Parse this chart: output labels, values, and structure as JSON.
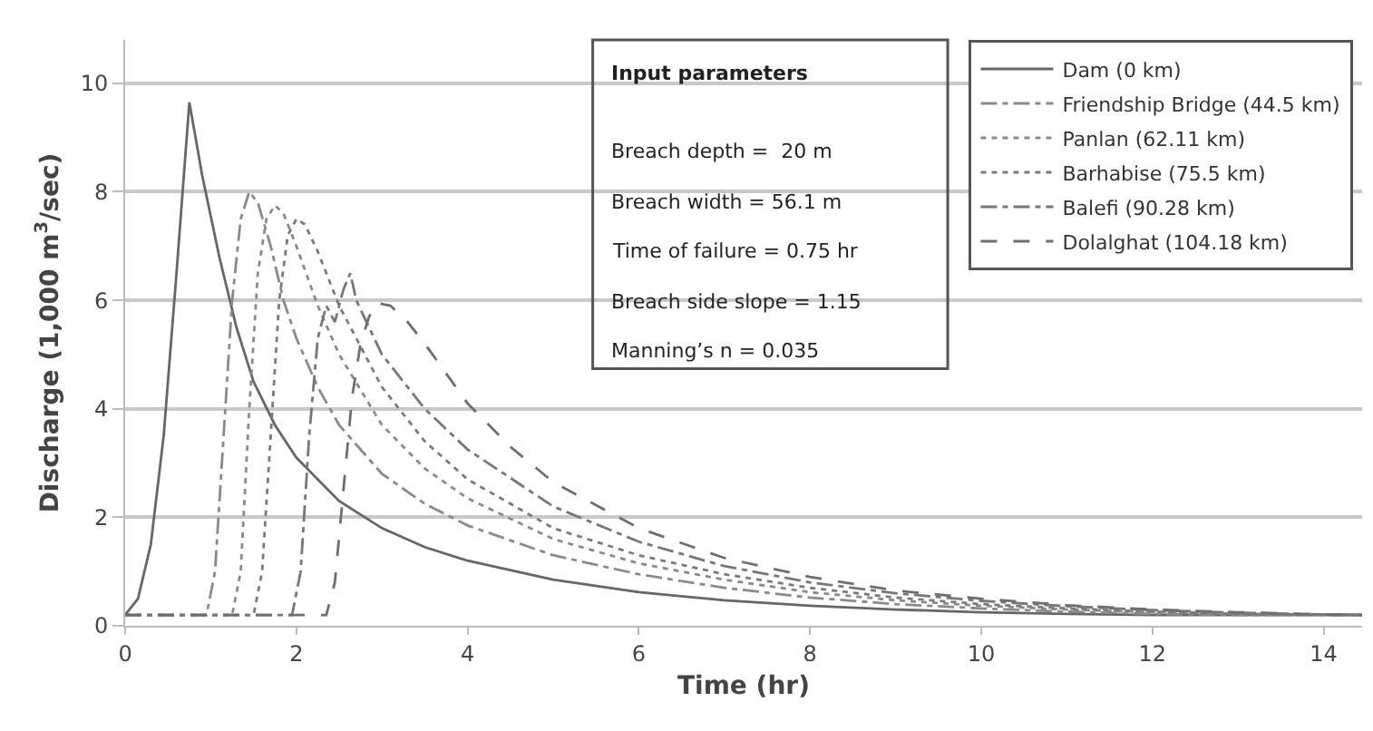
{
  "chart_data": {
    "type": "line",
    "xlabel": "Time (hr)",
    "ylabel": "Discharge (1,000 m$^{3}$/sec)",
    "xlim": [
      0,
      14.45
    ],
    "xticks": [
      0,
      2,
      4,
      6,
      8,
      10,
      12,
      14
    ],
    "ylim": [
      0,
      10.8
    ],
    "yticks": [
      0,
      2,
      4,
      6,
      8,
      10
    ],
    "grid": "y",
    "legend": "top right",
    "marker": "none",
    "annotations": [
      "Input parameters",
      "Breach depth =  20 m",
      "Breach width = 56.1 m",
      "Time of failure = 0.75 hr",
      "Breach side slope = 1.15",
      "Manning’s n = 0.035"
    ],
    "series": [
      {
        "name": "Dam (0 km)",
        "color": "#666666",
        "line_style": "solid",
        "x": [
          0,
          0.15,
          0.3,
          0.45,
          0.6,
          0.75,
          0.9,
          1.1,
          1.3,
          1.5,
          1.75,
          2,
          2.5,
          3,
          3.5,
          4,
          5,
          6,
          7,
          8,
          9,
          10,
          11,
          12,
          14.45
        ],
        "values": [
          0.2,
          0.5,
          1.5,
          3.5,
          6.5,
          9.65,
          8.3,
          6.8,
          5.5,
          4.5,
          3.7,
          3.1,
          2.3,
          1.8,
          1.45,
          1.2,
          0.85,
          0.62,
          0.47,
          0.37,
          0.3,
          0.25,
          0.22,
          0.2,
          0.2
        ]
      },
      {
        "name": "Friendship Bridge (44.5 km)",
        "color": "#8a8a8a",
        "line_style": "dashdot",
        "x": [
          0,
          0.95,
          1.05,
          1.15,
          1.25,
          1.35,
          1.45,
          1.55,
          1.7,
          1.85,
          2,
          2.25,
          2.5,
          3,
          3.5,
          4,
          5,
          6,
          7,
          8,
          9,
          10,
          11,
          12,
          13,
          14.45
        ],
        "values": [
          0.2,
          0.2,
          1.0,
          3.5,
          6.0,
          7.5,
          8.0,
          7.8,
          7.0,
          6.0,
          5.3,
          4.4,
          3.7,
          2.8,
          2.25,
          1.85,
          1.3,
          0.95,
          0.7,
          0.52,
          0.4,
          0.32,
          0.26,
          0.22,
          0.2,
          0.2
        ]
      },
      {
        "name": "Panlan (62.11 km)",
        "color": "#8a8a8a",
        "line_style": "dotted",
        "x": [
          0,
          1.25,
          1.35,
          1.45,
          1.55,
          1.65,
          1.75,
          1.85,
          2,
          2.25,
          2.5,
          3,
          3.5,
          4,
          5,
          6,
          7,
          8,
          9,
          10,
          11,
          12,
          13,
          14.45
        ],
        "values": [
          0.2,
          0.2,
          1.0,
          4.0,
          6.5,
          7.5,
          7.75,
          7.6,
          7.0,
          5.9,
          5.0,
          3.7,
          2.9,
          2.35,
          1.6,
          1.15,
          0.85,
          0.62,
          0.47,
          0.37,
          0.3,
          0.25,
          0.22,
          0.2
        ]
      },
      {
        "name": "Barhabise (75.5 km)",
        "color": "#7a7a7a",
        "line_style": "dotted",
        "x": [
          0,
          1.5,
          1.6,
          1.7,
          1.8,
          1.9,
          2.0,
          2.1,
          2.25,
          2.5,
          3,
          3.5,
          4,
          5,
          6,
          7,
          8,
          9,
          10,
          11,
          12,
          13,
          14.45
        ],
        "values": [
          0.2,
          0.2,
          1.0,
          3.5,
          6.0,
          7.2,
          7.5,
          7.4,
          6.9,
          5.9,
          4.4,
          3.4,
          2.7,
          1.8,
          1.3,
          0.95,
          0.7,
          0.52,
          0.4,
          0.32,
          0.26,
          0.22,
          0.2
        ]
      },
      {
        "name": "Balefi (90.28 km)",
        "color": "#777777",
        "line_style": "dashdot",
        "x": [
          0,
          1.95,
          2.05,
          2.15,
          2.25,
          2.35,
          2.45,
          2.55,
          2.63,
          2.7,
          2.85,
          3,
          3.5,
          4,
          5,
          6,
          7,
          8,
          9,
          10,
          11,
          12,
          13,
          14,
          14.45
        ],
        "values": [
          0.2,
          0.2,
          1.0,
          3.5,
          5.3,
          5.9,
          5.6,
          6.2,
          6.5,
          6.0,
          5.5,
          5.0,
          4.0,
          3.25,
          2.2,
          1.55,
          1.1,
          0.8,
          0.6,
          0.46,
          0.36,
          0.29,
          0.24,
          0.21,
          0.2
        ]
      },
      {
        "name": "Dolalghat (104.18 km)",
        "color": "#6e6e6e",
        "line_style": "dashed",
        "x": [
          0,
          2.35,
          2.45,
          2.55,
          2.65,
          2.75,
          2.85,
          2.95,
          3.1,
          3.3,
          3.5,
          4,
          4.5,
          5,
          6,
          7,
          8,
          9,
          10,
          11,
          12,
          13,
          14,
          14.45
        ],
        "values": [
          0.2,
          0.2,
          0.8,
          2.5,
          4.2,
          5.2,
          5.7,
          5.95,
          5.9,
          5.6,
          5.2,
          4.1,
          3.3,
          2.65,
          1.8,
          1.25,
          0.9,
          0.65,
          0.5,
          0.38,
          0.3,
          0.25,
          0.21,
          0.2
        ]
      }
    ]
  }
}
